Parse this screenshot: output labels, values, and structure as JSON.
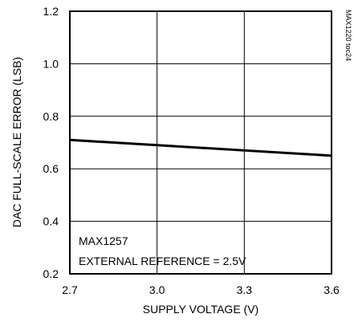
{
  "chart_data": {
    "type": "line",
    "title": "",
    "xlabel": "SUPPLY VOLTAGE (V)",
    "ylabel": "DAC FULL-SCALE ERROR (LSB)",
    "xlim": [
      2.7,
      3.6
    ],
    "ylim": [
      0.2,
      1.2
    ],
    "x_ticks": [
      2.7,
      3.0,
      3.3,
      3.6
    ],
    "x_tick_labels": [
      "2.7",
      "3.0",
      "3.3",
      "3.6"
    ],
    "y_ticks": [
      0.2,
      0.4,
      0.6,
      0.8,
      1.0,
      1.2
    ],
    "y_tick_labels": [
      "0.2",
      "0.4",
      "0.6",
      "0.8",
      "1.0",
      "1.2"
    ],
    "grid": true,
    "series": [
      {
        "x": [
          2.7,
          3.0,
          3.3,
          3.6
        ],
        "y": [
          0.71,
          0.69,
          0.67,
          0.65
        ],
        "color": "#000000"
      }
    ],
    "annotations": [
      "MAX1257",
      "EXTERNAL REFERENCE = 2.5V"
    ],
    "side_label": "MAX1220 toc24"
  }
}
